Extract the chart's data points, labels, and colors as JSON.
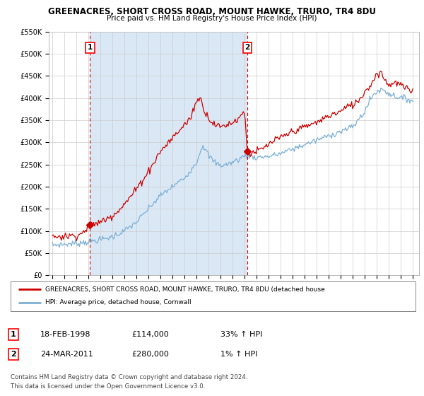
{
  "title": "GREENACRES, SHORT CROSS ROAD, MOUNT HAWKE, TRURO, TR4 8DU",
  "subtitle": "Price paid vs. HM Land Registry's House Price Index (HPI)",
  "ylim": [
    0,
    550000
  ],
  "yticks": [
    0,
    50000,
    100000,
    150000,
    200000,
    250000,
    300000,
    350000,
    400000,
    450000,
    500000,
    550000
  ],
  "ytick_labels": [
    "£0",
    "£50K",
    "£100K",
    "£150K",
    "£200K",
    "£250K",
    "£300K",
    "£350K",
    "£400K",
    "£450K",
    "£500K",
    "£550K"
  ],
  "hpi_color": "#7BAFD4",
  "price_color": "#CC0000",
  "shade_color": "#DAE8F5",
  "sale1_x": 1998.13,
  "sale1_y": 114000,
  "sale1_label": "1",
  "sale1_date": "18-FEB-1998",
  "sale1_price": "£114,000",
  "sale1_hpi": "33% ↑ HPI",
  "sale2_x": 2011.23,
  "sale2_y": 280000,
  "sale2_label": "2",
  "sale2_date": "24-MAR-2011",
  "sale2_price": "£280,000",
  "sale2_hpi": "1% ↑ HPI",
  "legend_line1": "GREENACRES, SHORT CROSS ROAD, MOUNT HAWKE, TRURO, TR4 8DU (detached house",
  "legend_line2": "HPI: Average price, detached house, Cornwall",
  "footer1": "Contains HM Land Registry data © Crown copyright and database right 2024.",
  "footer2": "This data is licensed under the Open Government Licence v3.0.",
  "vline1_x": 1998.13,
  "vline2_x": 2011.23,
  "xlim_left": 1994.7,
  "xlim_right": 2025.5,
  "plot_bg": "#FFFFFF",
  "grid_color": "#CCCCCC"
}
